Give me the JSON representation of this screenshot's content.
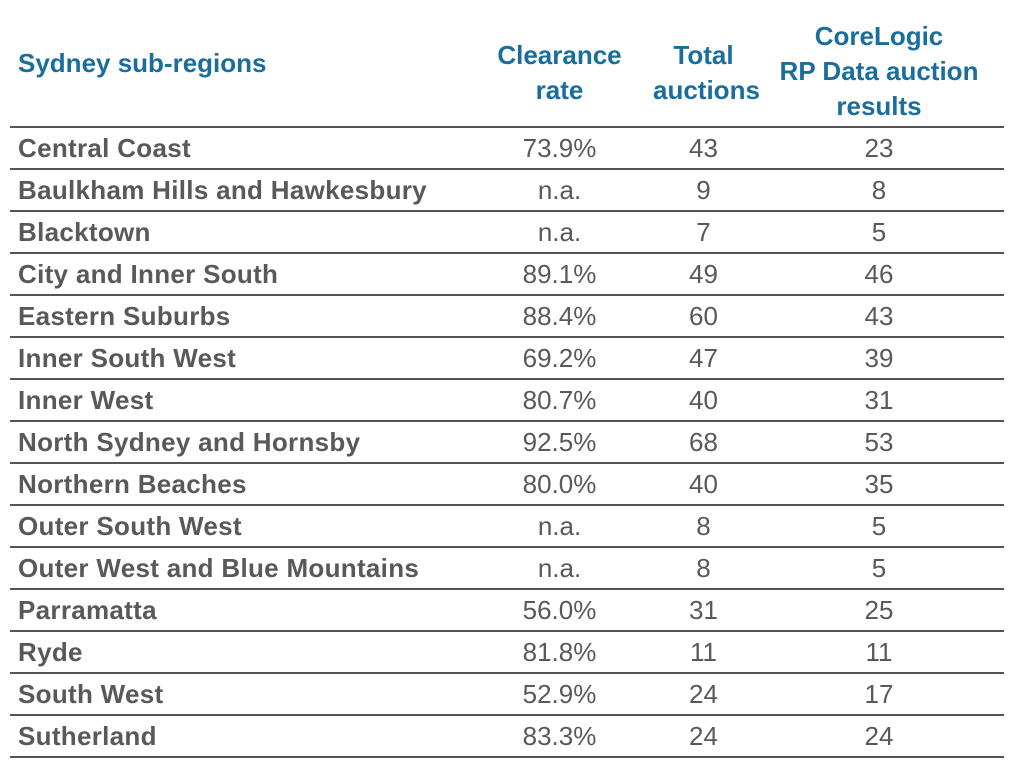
{
  "table": {
    "headers": {
      "region": "Sydney sub-regions",
      "clearance_rate": [
        "Clearance",
        "rate"
      ],
      "total_auctions": [
        "Total",
        "auctions"
      ],
      "results": [
        "CoreLogic",
        "RP Data auction",
        "results"
      ]
    },
    "rows": [
      {
        "region": "Central Coast",
        "clearance_rate": "73.9%",
        "total_auctions": "43",
        "results": "23"
      },
      {
        "region": "Baulkham Hills and Hawkesbury",
        "clearance_rate": "n.a.",
        "total_auctions": "9",
        "results": "8"
      },
      {
        "region": "Blacktown",
        "clearance_rate": "n.a.",
        "total_auctions": "7",
        "results": "5"
      },
      {
        "region": "City and Inner South",
        "clearance_rate": "89.1%",
        "total_auctions": "49",
        "results": "46"
      },
      {
        "region": "Eastern Suburbs",
        "clearance_rate": "88.4%",
        "total_auctions": "60",
        "results": "43"
      },
      {
        "region": "Inner South West",
        "clearance_rate": "69.2%",
        "total_auctions": "47",
        "results": "39"
      },
      {
        "region": "Inner West",
        "clearance_rate": "80.7%",
        "total_auctions": "40",
        "results": "31"
      },
      {
        "region": "North Sydney and Hornsby",
        "clearance_rate": "92.5%",
        "total_auctions": "68",
        "results": "53"
      },
      {
        "region": "Northern Beaches",
        "clearance_rate": "80.0%",
        "total_auctions": "40",
        "results": "35"
      },
      {
        "region": "Outer South West",
        "clearance_rate": "n.a.",
        "total_auctions": "8",
        "results": "5"
      },
      {
        "region": "Outer West and Blue Mountains",
        "clearance_rate": "n.a.",
        "total_auctions": "8",
        "results": "5"
      },
      {
        "region": "Parramatta",
        "clearance_rate": "56.0%",
        "total_auctions": "31",
        "results": "25"
      },
      {
        "region": "Ryde",
        "clearance_rate": "81.8%",
        "total_auctions": "11",
        "results": "11"
      },
      {
        "region": "South West",
        "clearance_rate": "52.9%",
        "total_auctions": "24",
        "results": "17"
      },
      {
        "region": "Sutherland",
        "clearance_rate": "83.3%",
        "total_auctions": "24",
        "results": "24"
      }
    ]
  },
  "colors": {
    "header_text": "#1a6e9b",
    "body_text": "#595959",
    "rule": "#555555"
  }
}
